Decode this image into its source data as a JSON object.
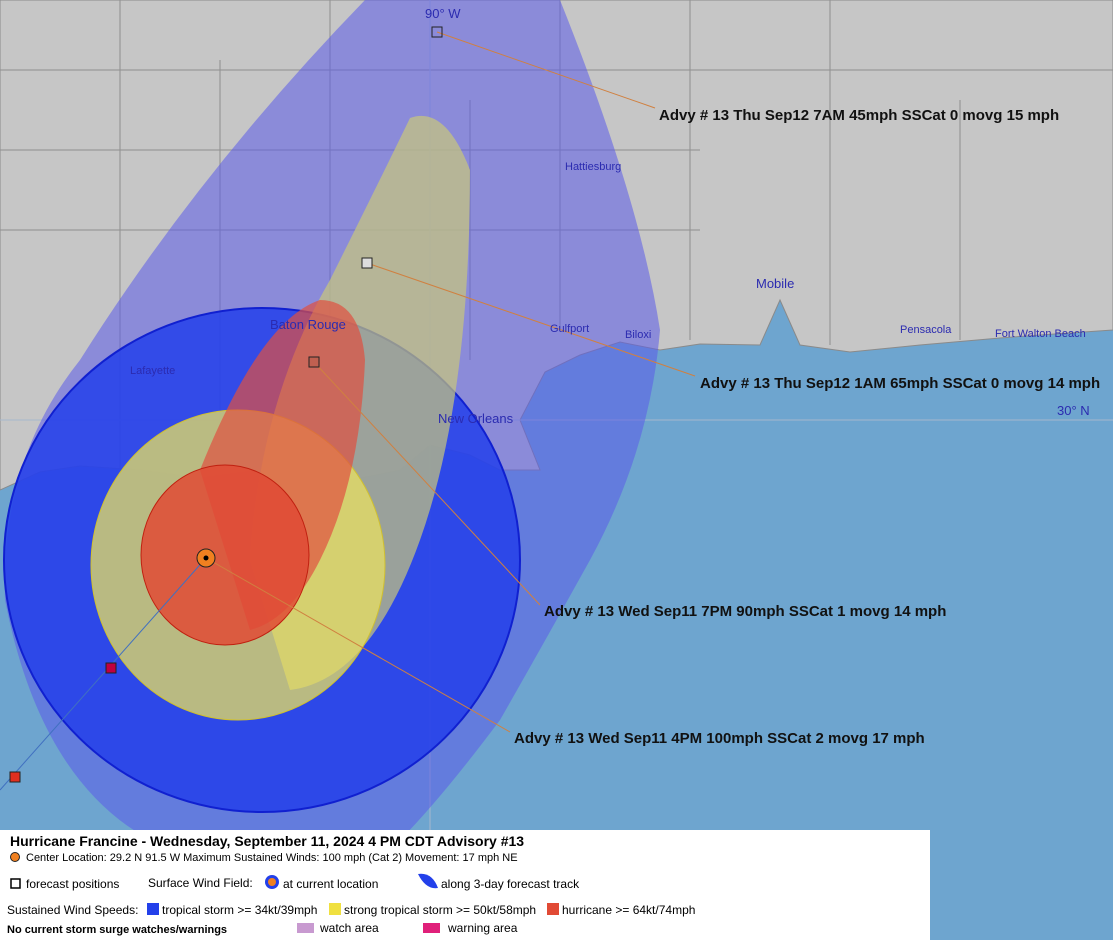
{
  "map": {
    "grid_labels": {
      "longitude": "90° W",
      "latitude": "30° N"
    },
    "cities": [
      "Hattiesburg",
      "Mobile",
      "Baton Rouge",
      "Gulfport",
      "Biloxi",
      "Pensacola",
      "Fort Walton Beach",
      "Lafayette",
      "New Orleans"
    ],
    "advisories": [
      "Advy # 13 Thu Sep12 7AM  45mph SSCat 0 movg 15 mph",
      "Advy # 13 Thu Sep12 1AM  65mph SSCat 0 movg 14 mph",
      "Advy # 13 Wed Sep11 7PM  90mph SSCat 1 movg 14 mph",
      "Advy # 13 Wed Sep11 4PM  100mph SSCat 2 movg 17 mph"
    ]
  },
  "legend": {
    "title": "Hurricane Francine  -  Wednesday, September 11, 2024  4 PM CDT   Advisory #13",
    "center": "Center Location: 29.2 N  91.5 W   Maximum Sustained Winds: 100 mph (Cat 2) Movement: 17 mph NE",
    "forecast_positions": "forecast positions",
    "surface_wind_field": "Surface Wind Field:",
    "at_current_location": "at current location",
    "along_track": "along 3-day forecast track",
    "sustained_wind_speeds": "Sustained Wind Speeds:",
    "tropical_storm": "tropical storm >= 34kt/39mph",
    "strong_tropical_storm": "strong tropical storm >= 50kt/58mph",
    "hurricane": "hurricane >= 64kt/74mph",
    "surge_note": "No current storm surge watches/warnings",
    "watch_area": "watch area",
    "warning_area": "warning area"
  }
}
